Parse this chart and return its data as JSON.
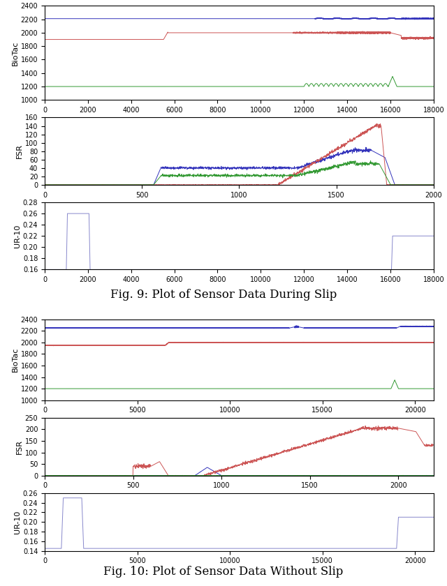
{
  "fig1_title": "Fig. 9: Plot of Sensor Data During Slip",
  "fig2_title": "Fig. 10: Plot of Sensor Data Without Slip",
  "fig1_biotac_xlim": [
    0,
    18000
  ],
  "fig1_biotac_ylim": [
    1000,
    2400
  ],
  "fig1_biotac_yticks": [
    1000,
    1200,
    1400,
    1600,
    1800,
    2000,
    2200,
    2400
  ],
  "fig1_biotac_xticks": [
    0,
    2000,
    4000,
    6000,
    8000,
    10000,
    12000,
    14000,
    16000,
    18000
  ],
  "fig1_fsr_xlim": [
    0,
    2000
  ],
  "fig1_fsr_ylim": [
    0,
    160
  ],
  "fig1_fsr_yticks": [
    0,
    20,
    40,
    60,
    80,
    100,
    120,
    140,
    160
  ],
  "fig1_fsr_xticks": [
    0,
    500,
    1000,
    1500,
    2000
  ],
  "fig1_ur_xlim": [
    0,
    18000
  ],
  "fig1_ur_ylim": [
    0.16,
    0.28
  ],
  "fig1_ur_yticks": [
    0.16,
    0.18,
    0.2,
    0.22,
    0.24,
    0.26,
    0.28
  ],
  "fig1_ur_xticks": [
    0,
    2000,
    4000,
    6000,
    8000,
    10000,
    12000,
    14000,
    16000,
    18000
  ],
  "fig2_biotac_xlim": [
    0,
    21000
  ],
  "fig2_biotac_ylim": [
    1000,
    2400
  ],
  "fig2_biotac_yticks": [
    1000,
    1200,
    1400,
    1600,
    1800,
    2000,
    2200,
    2400
  ],
  "fig2_biotac_xticks": [
    0,
    5000,
    10000,
    15000,
    20000
  ],
  "fig2_fsr_xlim": [
    0,
    2200
  ],
  "fig2_fsr_ylim": [
    0,
    250
  ],
  "fig2_fsr_yticks": [
    0,
    50,
    100,
    150,
    200,
    250
  ],
  "fig2_fsr_xticks": [
    0,
    500,
    1000,
    1500,
    2000
  ],
  "fig2_ur_xlim": [
    0,
    21000
  ],
  "fig2_ur_ylim": [
    0.14,
    0.26
  ],
  "fig2_ur_yticks": [
    0.14,
    0.16,
    0.18,
    0.2,
    0.22,
    0.24,
    0.26
  ],
  "fig2_ur_xticks": [
    0,
    5000,
    10000,
    15000,
    20000
  ],
  "blue": "#3333bb",
  "red": "#cc5555",
  "green": "#339933",
  "light_blue": "#8888cc",
  "ylabel_biotac": "BioTac",
  "ylabel_fsr": "FSR",
  "ylabel_ur": "UR-10",
  "title_fontsize": 12,
  "tick_fontsize": 7,
  "label_fontsize": 8
}
